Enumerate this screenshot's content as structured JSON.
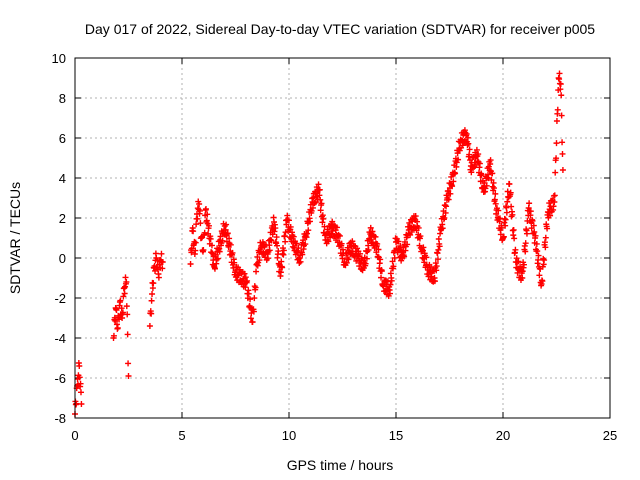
{
  "chart_data": {
    "type": "scatter",
    "title": "Day 017 of 2022, Sidereal Day-to-day VTEC variation (SDTVAR) for receiver p005",
    "xlabel": "GPS time / hours",
    "ylabel": "SDTVAR / TECUs",
    "xlim": [
      0,
      25
    ],
    "ylim": [
      -8,
      10
    ],
    "xticks": [
      0,
      5,
      10,
      15,
      20,
      25
    ],
    "yticks": [
      -8,
      -6,
      -4,
      -2,
      0,
      2,
      4,
      6,
      8,
      10
    ],
    "grid": true,
    "marker": "+",
    "color": "#ff0000",
    "series": [
      {
        "name": "SDTVAR p005",
        "x": [
          0.0,
          0.1,
          0.2,
          0.3,
          1.8,
          1.9,
          2.0,
          2.1,
          2.2,
          2.3,
          2.4,
          2.5,
          3.5,
          3.6,
          3.7,
          3.8,
          3.9,
          4.0,
          4.1,
          5.4,
          5.5,
          5.6,
          5.7,
          5.8,
          5.9,
          6.0,
          6.1,
          6.5,
          7.0,
          7.5,
          8.0,
          8.3,
          8.5,
          8.7,
          9.0,
          9.3,
          9.6,
          9.9,
          10.2,
          10.5,
          10.8,
          11.1,
          11.4,
          11.7,
          12.0,
          12.3,
          12.6,
          12.9,
          13.2,
          13.5,
          13.8,
          14.1,
          14.4,
          14.7,
          15.0,
          15.3,
          15.6,
          15.9,
          16.2,
          16.5,
          16.8,
          17.1,
          17.4,
          17.7,
          18.0,
          18.3,
          18.5,
          18.8,
          19.1,
          19.4,
          19.7,
          20.0,
          20.3,
          20.6,
          20.9,
          21.2,
          21.5,
          21.8,
          22.1,
          22.4,
          22.6,
          22.7,
          22.8
        ],
        "y": [
          -7.8,
          -6.4,
          -5.4,
          -7.3,
          -4.0,
          -2.5,
          -3.5,
          -2.2,
          -3.0,
          -1.5,
          -1.2,
          -5.9,
          -3.4,
          -1.8,
          -0.5,
          0.0,
          -0.8,
          -0.1,
          -0.2,
          -0.3,
          1.5,
          0.2,
          2.2,
          2.7,
          1.0,
          0.4,
          2.4,
          -0.4,
          1.6,
          -0.7,
          -1.2,
          -3.2,
          -0.3,
          0.6,
          0.2,
          1.8,
          -0.9,
          1.9,
          0.8,
          0.0,
          1.2,
          2.8,
          3.4,
          0.9,
          1.5,
          1.1,
          -0.2,
          0.6,
          0.1,
          -0.5,
          1.2,
          0.6,
          -1.3,
          -1.6,
          0.8,
          0.0,
          1.4,
          1.9,
          0.5,
          -0.6,
          -1.0,
          1.4,
          3.0,
          4.2,
          5.8,
          6.2,
          4.6,
          5.1,
          3.3,
          4.7,
          2.4,
          1.0,
          3.7,
          -0.2,
          -1.0,
          2.5,
          1.0,
          -1.3,
          2.3,
          2.8,
          9.0,
          8.7,
          4.4
        ]
      }
    ]
  }
}
